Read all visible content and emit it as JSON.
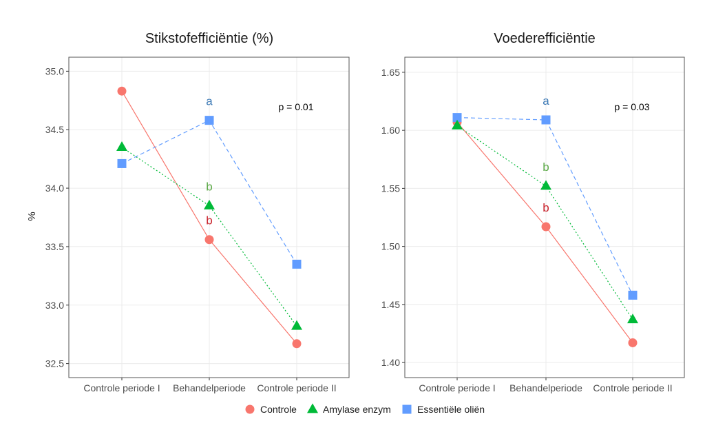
{
  "chart_data": [
    {
      "type": "line",
      "title": "Stikstofefficiëntie (%)",
      "xlabel": "",
      "ylabel": "%",
      "categories": [
        "Controle periode I",
        "Behandelperiode",
        "Controle periode II"
      ],
      "ylim": [
        32.38,
        35.12
      ],
      "yticks": [
        32.5,
        33.0,
        33.5,
        34.0,
        34.5,
        35.0
      ],
      "ytick_labels": [
        "32.5",
        "33.0",
        "33.5",
        "34.0",
        "34.5",
        "35.0"
      ],
      "grid": true,
      "annotation": "p = 0.01",
      "series": [
        {
          "name": "Controle",
          "values": [
            34.83,
            33.56,
            32.67
          ],
          "color": "#F8766D",
          "marker": "circle",
          "linestyle": "solid"
        },
        {
          "name": "Amylase enzym",
          "values": [
            34.35,
            33.85,
            32.82
          ],
          "color": "#00BA38",
          "marker": "triangle",
          "linestyle": "dotted"
        },
        {
          "name": "Essentiële oliën",
          "values": [
            34.21,
            34.58,
            33.35
          ],
          "color": "#619CFF",
          "marker": "square",
          "linestyle": "dashed"
        }
      ],
      "significance_labels": [
        {
          "category": "Behandelperiode",
          "series": "Essentiële oliën",
          "label": "a"
        },
        {
          "category": "Behandelperiode",
          "series": "Amylase enzym",
          "label": "b"
        },
        {
          "category": "Behandelperiode",
          "series": "Controle",
          "label": "b"
        }
      ]
    },
    {
      "type": "line",
      "title": "Voederefficiëntie",
      "xlabel": "",
      "ylabel": "",
      "categories": [
        "Controle periode I",
        "Behandelperiode",
        "Controle periode II"
      ],
      "ylim": [
        1.387,
        1.663
      ],
      "yticks": [
        1.4,
        1.45,
        1.5,
        1.55,
        1.6,
        1.65
      ],
      "ytick_labels": [
        "1.40",
        "1.45",
        "1.50",
        "1.55",
        "1.60",
        "1.65"
      ],
      "grid": true,
      "annotation": "p = 0.03",
      "series": [
        {
          "name": "Controle",
          "values": [
            1.607,
            1.517,
            1.417
          ],
          "color": "#F8766D",
          "marker": "circle",
          "linestyle": "solid"
        },
        {
          "name": "Amylase enzym",
          "values": [
            1.604,
            1.552,
            1.437
          ],
          "color": "#00BA38",
          "marker": "triangle",
          "linestyle": "dotted"
        },
        {
          "name": "Essentiële oliën",
          "values": [
            1.611,
            1.609,
            1.458
          ],
          "color": "#619CFF",
          "marker": "square",
          "linestyle": "dashed"
        }
      ],
      "significance_labels": [
        {
          "category": "Behandelperiode",
          "series": "Essentiële oliën",
          "label": "a"
        },
        {
          "category": "Behandelperiode",
          "series": "Amylase enzym",
          "label": "b"
        },
        {
          "category": "Behandelperiode",
          "series": "Controle",
          "label": "b"
        }
      ]
    }
  ],
  "legend": {
    "position": "bottom",
    "items": [
      {
        "label": "Controle",
        "marker": "circle",
        "color": "#F8766D"
      },
      {
        "label": "Amylase enzym",
        "marker": "triangle",
        "color": "#00BA38"
      },
      {
        "label": "Essentiële oliën",
        "marker": "square",
        "color": "#619CFF"
      }
    ]
  },
  "colors": {
    "sig_a": "#3a78b5",
    "sig_b_green": "#5aa845",
    "sig_b_red": "#c8202a"
  }
}
